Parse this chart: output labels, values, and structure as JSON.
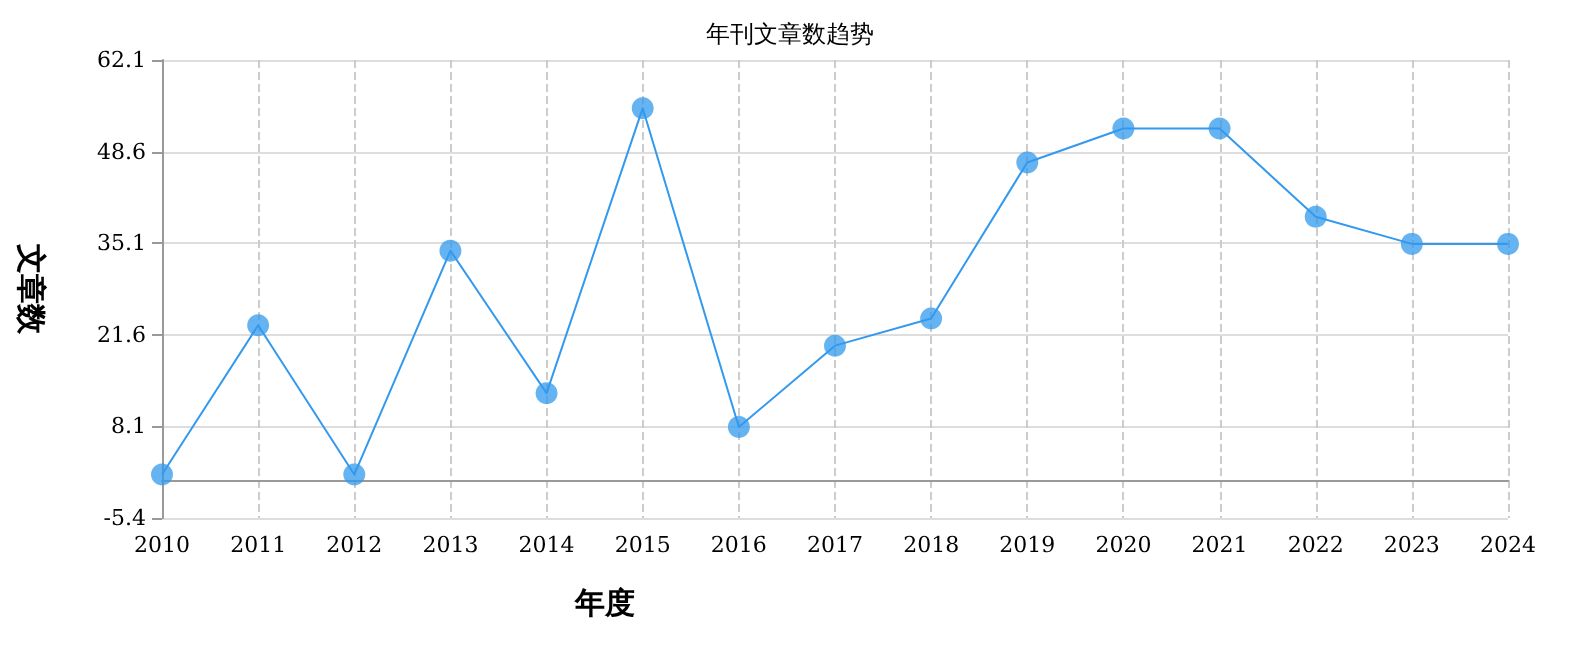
{
  "chart_data": {
    "type": "line",
    "title": "年刊文章数趋势",
    "xlabel": "年度",
    "ylabel": "文章数",
    "categories": [
      "2010",
      "2011",
      "2012",
      "2013",
      "2014",
      "2015",
      "2016",
      "2017",
      "2018",
      "2019",
      "2020",
      "2021",
      "2022",
      "2023",
      "2024"
    ],
    "series": [
      {
        "color": "#3399ee",
        "values": [
          1,
          23,
          1,
          34,
          13,
          55,
          8,
          20,
          24,
          47,
          52,
          52,
          39,
          35,
          35
        ]
      }
    ],
    "ylim": [
      -5.4,
      62.1
    ],
    "yticks": [
      -5.4,
      8.1,
      21.6,
      35.1,
      48.6,
      62.1
    ],
    "grid": true,
    "marker": "circle",
    "line_style": "solid"
  }
}
